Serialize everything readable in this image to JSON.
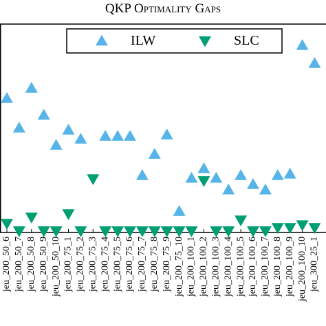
{
  "chart_data": {
    "type": "scatter",
    "title": "QKP Optimality Gaps",
    "categories": [
      "jeu_200_50_6",
      "jeu_200_50_7",
      "jeu_200_50_8",
      "jeu_200_50_9",
      "jeu_200_50_10",
      "jeu_200_75_1",
      "jeu_200_75_2",
      "jeu_200_75_3",
      "jeu_200_75_4",
      "jeu_200_75_5",
      "jeu_200_75_6",
      "jeu_200_75_7",
      "jeu_200_75_8",
      "jeu_200_75_9",
      "jeu_200_75_10",
      "jeu_200_100_1",
      "jeu_200_100_2",
      "jeu_200_100_3",
      "jeu_200_100_4",
      "jeu_200_100_5",
      "jeu_200_100_6",
      "jeu_200_100_7",
      "jeu_200_100_8",
      "jeu_200_100_9",
      "jeu_200_100_10",
      "jeu_300_25_1"
    ],
    "series": [
      {
        "name": "ILW",
        "color": "#56b4e9",
        "marker": "triangle-up",
        "values": [
          64.4,
          50.2,
          69.3,
          56.4,
          41.9,
          49.2,
          44.9,
          null,
          46.2,
          46.2,
          46.2,
          27.4,
          37.6,
          46.9,
          10.2,
          26.1,
          30.7,
          26.1,
          20.5,
          27.4,
          23.1,
          20.5,
          27.4,
          28.1,
          89.8,
          81.2
        ]
      },
      {
        "name": "SLC",
        "color": "#009e73",
        "marker": "triangle-down",
        "values": [
          4.3,
          0.7,
          7.3,
          0.7,
          0.7,
          8.9,
          0.7,
          25.7,
          0.7,
          0.7,
          0.7,
          0.7,
          0.7,
          0.7,
          0.7,
          0.7,
          24.8,
          0.7,
          0.7,
          5.9,
          0.7,
          0.7,
          2.3,
          2.3,
          3.6,
          2.3
        ]
      }
    ],
    "ylim": [
      0,
      100
    ],
    "legend": "top"
  }
}
